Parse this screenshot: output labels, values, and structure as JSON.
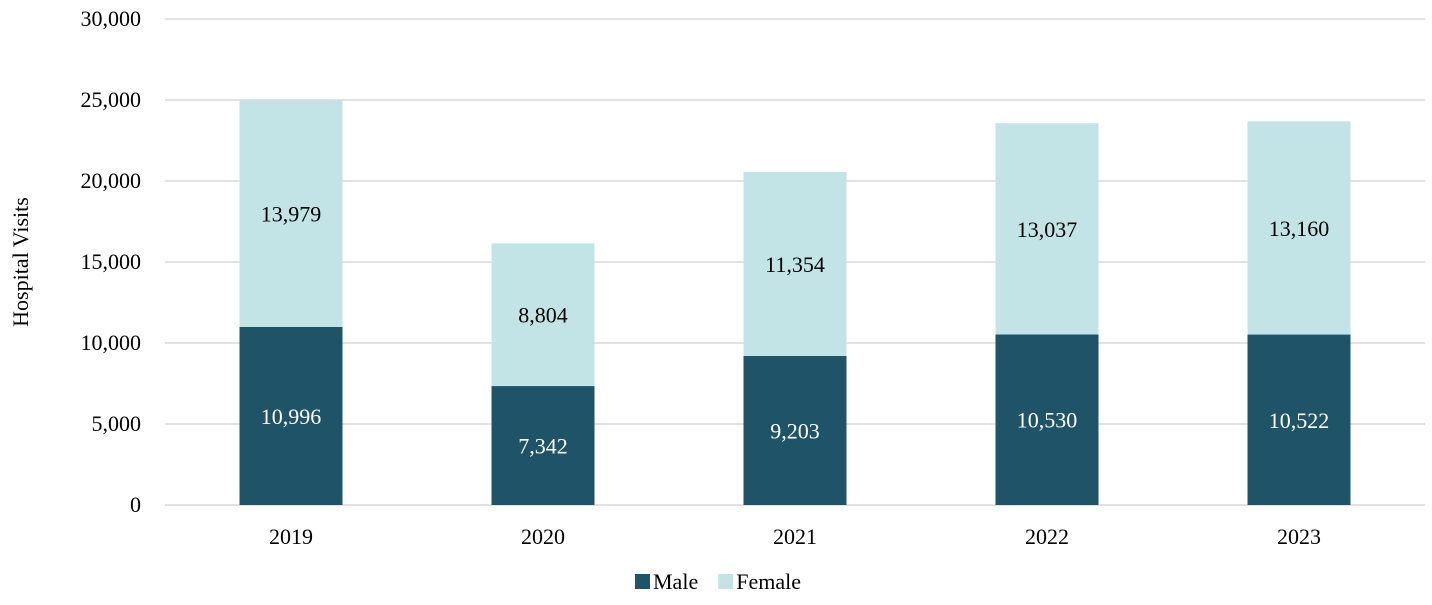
{
  "chart_data": {
    "type": "bar",
    "stacked": true,
    "categories": [
      "2019",
      "2020",
      "2021",
      "2022",
      "2023"
    ],
    "series": [
      {
        "name": "Male",
        "values": [
          10996,
          7342,
          9203,
          10530,
          10522
        ],
        "color": "#1f5468",
        "label_color": "#ffffff"
      },
      {
        "name": "Female",
        "values": [
          13979,
          8804,
          11354,
          13037,
          13160
        ],
        "color": "#c2e4e6",
        "label_color": "#000000"
      }
    ],
    "data_labels": {
      "Male": [
        "10,996",
        "7,342",
        "9,203",
        "10,530",
        "10,522"
      ],
      "Female": [
        "13,979",
        "8,804",
        "11,354",
        "13,037",
        "13,160"
      ]
    },
    "ylabel": "Hospital Visits",
    "xlabel": "",
    "ylim": [
      0,
      30000
    ],
    "yticks": [
      0,
      5000,
      10000,
      15000,
      20000,
      25000,
      30000
    ],
    "ytick_labels": [
      "0",
      "5,000",
      "10,000",
      "15,000",
      "20,000",
      "25,000",
      "30,000"
    ],
    "grid": true,
    "gridline_color": "#d9d9d9",
    "legend_position": "bottom"
  }
}
